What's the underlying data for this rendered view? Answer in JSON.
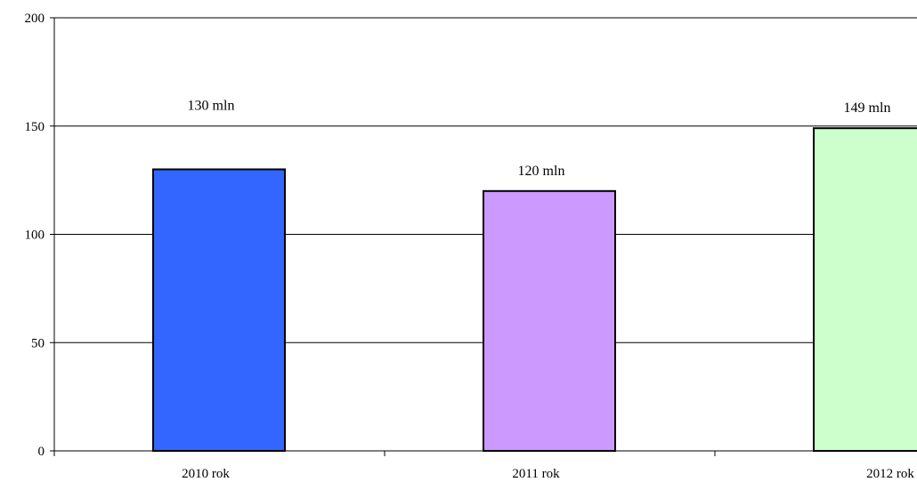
{
  "chart_data": {
    "type": "bar",
    "title": "",
    "xlabel": "",
    "ylabel": "",
    "categories": [
      "2010 rok",
      "2011 rok",
      "2012 rok"
    ],
    "values": [
      130,
      120,
      149
    ],
    "data_labels": [
      "130 mln",
      "120 mln",
      "149 mln"
    ],
    "ylim": [
      0,
      200
    ],
    "y_ticks": [
      "0",
      "50",
      "100",
      "150",
      "200"
    ],
    "grid": true,
    "legend": "none",
    "colors": [
      "#3366ff",
      "#cc99ff",
      "#ccffcc"
    ],
    "bar_edge_color": "#000000",
    "gridline_color": "#000000"
  }
}
